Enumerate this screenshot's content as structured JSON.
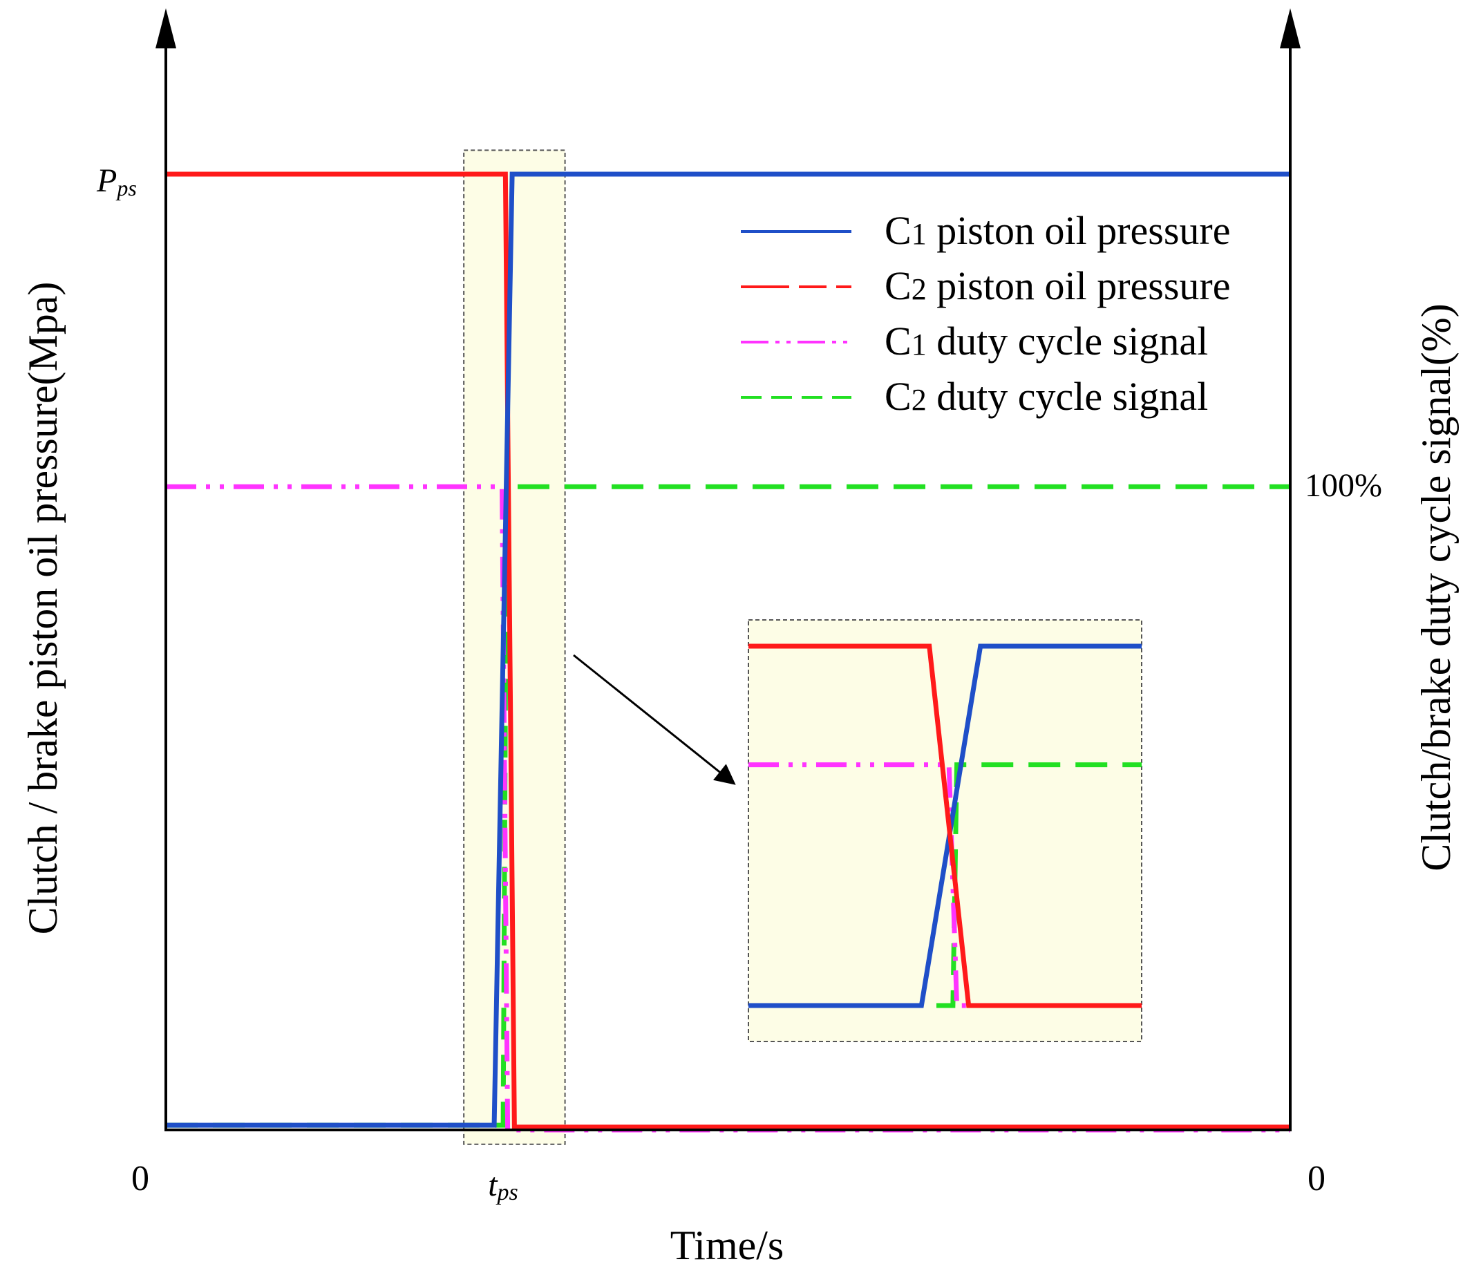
{
  "chart_data": {
    "type": "line",
    "title": "",
    "xlabel": "Time/s",
    "ylabel_left": "Clutch / brake piston oil pressure(Mpa)",
    "ylabel_right": "Clutch/brake duty cycle signal(%)",
    "x_origin_label": "0",
    "right_origin_label": "0",
    "x_marker": {
      "label_main": "t",
      "label_sub": "ps"
    },
    "y_marker": {
      "label_main": "P",
      "label_sub": "ps"
    },
    "right_tick_label": "100%",
    "units": "normalized",
    "xlim": [
      0,
      1
    ],
    "ylim": [
      0,
      1
    ],
    "switch_time": 0.3,
    "legend": [
      {
        "name_main": "C",
        "name_sub": "1",
        "name_rest": " piston oil pressure",
        "color": "#1f4fc8",
        "style": "solid"
      },
      {
        "name_main": "C",
        "name_sub": "2",
        "name_rest": " piston oil pressure",
        "color": "#ff1a1a",
        "style": "longdash"
      },
      {
        "name_main": "C",
        "name_sub": "1",
        "name_rest": " duty cycle signal",
        "color": "#ff33ff",
        "style": "dashdot"
      },
      {
        "name_main": "C",
        "name_sub": "2",
        "name_rest": " duty cycle signal",
        "color": "#22e022",
        "style": "dash"
      }
    ],
    "series": [
      {
        "name": "C1 piston oil pressure",
        "color": "#1f4fc8",
        "style": "solid",
        "x": [
          0,
          0.292,
          0.308,
          1
        ],
        "y": [
          0.005,
          0.005,
          1.0,
          1.0
        ]
      },
      {
        "name": "C2 piston oil pressure",
        "color": "#ff1a1a",
        "style": "longdash",
        "x": [
          0,
          0.302,
          0.31,
          1
        ],
        "y": [
          1.0,
          1.0,
          0.003,
          0.003
        ]
      },
      {
        "name": "C1 duty cycle signal",
        "color": "#ff33ff",
        "style": "dashdot",
        "x": [
          0,
          0.299,
          0.304,
          1
        ],
        "y": [
          0.673,
          0.673,
          0.0,
          0.0
        ]
      },
      {
        "name": "C2 duty cycle signal",
        "color": "#22e022",
        "style": "dash",
        "x": [
          0,
          0.3,
          0.303,
          1
        ],
        "y": [
          0.005,
          0.005,
          0.673,
          0.673
        ]
      }
    ],
    "zoom_window": {
      "x": [
        0.265,
        0.355
      ],
      "y": [
        -0.015,
        1.025
      ]
    },
    "inset": {
      "description_data": {
        "C1": {
          "x": [
            0,
            0.44,
            0.59,
            1
          ],
          "y": [
            0,
            0,
            1,
            1
          ]
        },
        "C2": {
          "x": [
            0,
            0.46,
            0.56,
            1
          ],
          "y": [
            1,
            1,
            0,
            0
          ]
        },
        "C1_duty": {
          "x": [
            0,
            0.51,
            0.53,
            1
          ],
          "y": [
            0.67,
            0.67,
            0,
            0
          ]
        },
        "C2_duty": {
          "x": [
            0,
            0.52,
            0.53,
            1
          ],
          "y": [
            0,
            0,
            0.67,
            0.67
          ]
        }
      }
    }
  },
  "colors": {
    "axis": "#000000",
    "highlight_fill": "#fdfde6",
    "highlight_border": "#555555"
  }
}
